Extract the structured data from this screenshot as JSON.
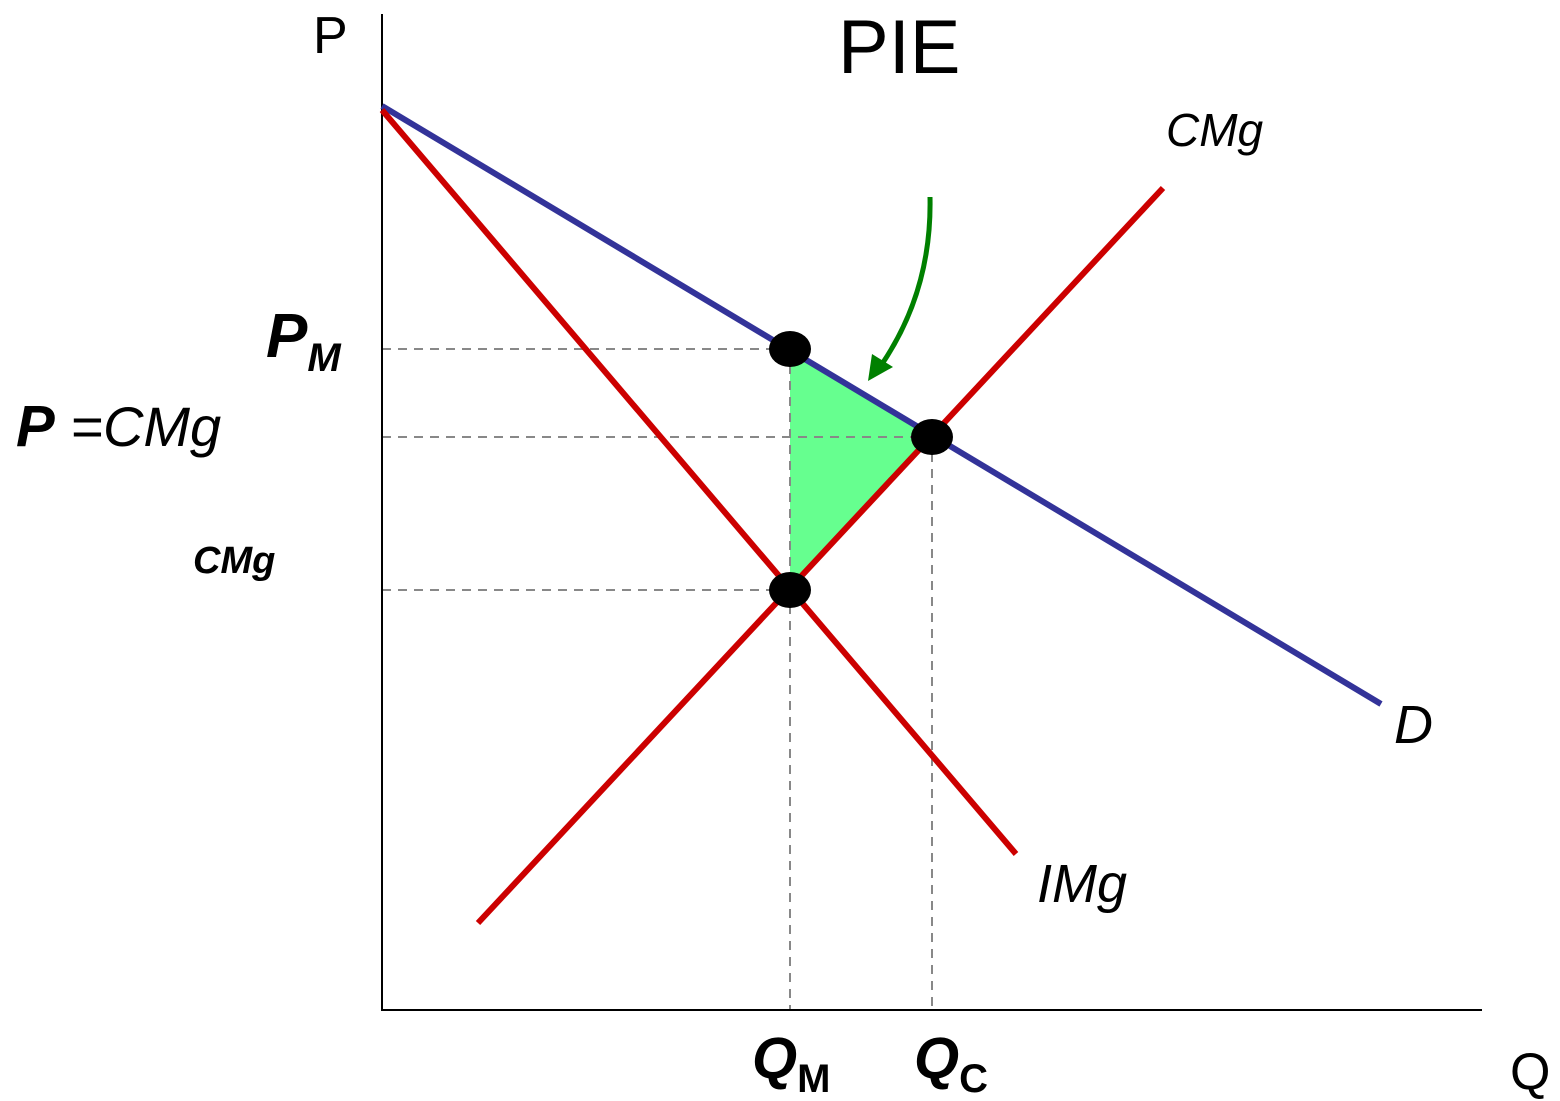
{
  "title": "PIE",
  "axes": {
    "y_label": "P",
    "x_label": "Q"
  },
  "curves": {
    "supply": {
      "name": "CMg",
      "color": "#cc0000"
    },
    "marginal_revenue": {
      "name": "IMg",
      "color": "#cc0000"
    },
    "demand": {
      "name": "D",
      "color": "#333399"
    }
  },
  "price_labels": {
    "pm_main": "P",
    "pm_sub": "M",
    "pc_main": "P",
    "pc_rest": " =CMg",
    "cost_label": "CMg"
  },
  "quantity_labels": {
    "qm_main": "Q",
    "qm_sub": "M",
    "qc_main": "Q",
    "qc_sub": "C"
  },
  "colors": {
    "deadweight_fill": "#66ff8f",
    "arrow": "#008000",
    "guide": "#888888",
    "point": "#000000"
  }
}
